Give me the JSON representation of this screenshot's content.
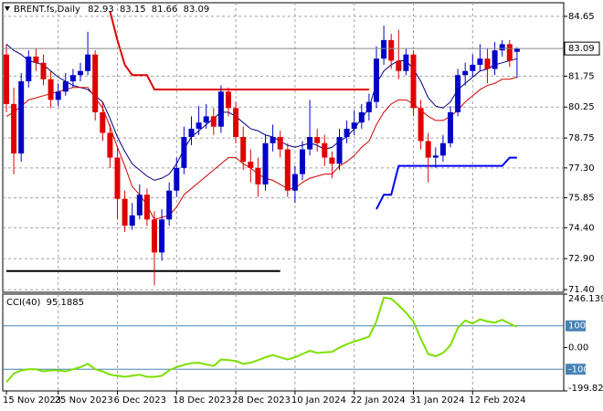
{
  "chart_data": {
    "type": "candlestick",
    "symbol": "BRENT.fs,Daily",
    "bull_color": "#0000c8",
    "bear_color": "#e00000",
    "grid": true,
    "ylim": [
      71.27,
      85.31
    ],
    "yticks": [
      84.65,
      81.75,
      80.25,
      78.75,
      {
        "value": 77.3,
        "label": "77.30"
      },
      75.85,
      {
        "value": 74.4,
        "label": "74.40"
      },
      {
        "value": 72.9,
        "label": "72.90"
      },
      {
        "value": 71.4,
        "label": "71.40"
      }
    ],
    "categories": [
      "15 Nov 2023",
      null,
      null,
      null,
      null,
      null,
      null,
      "25 Nov 2023",
      null,
      null,
      null,
      null,
      null,
      null,
      null,
      "6 Dec 2023",
      null,
      null,
      null,
      null,
      null,
      null,
      null,
      "18 Dec 2023",
      null,
      null,
      null,
      null,
      null,
      null,
      null,
      "28 Dec 2023",
      null,
      null,
      null,
      null,
      null,
      null,
      null,
      "10 Jan 2024",
      null,
      null,
      null,
      null,
      null,
      null,
      null,
      "22 Jan 2024",
      null,
      null,
      null,
      null,
      null,
      null,
      null,
      "31 Jan 2024",
      null,
      null,
      null,
      null,
      null,
      null,
      null,
      "12 Feb 2024",
      null,
      null,
      null,
      null,
      null,
      null
    ],
    "candles": [
      [
        82.8,
        83.3,
        80.0,
        80.4
      ],
      [
        80.4,
        81.2,
        77.0,
        78.0
      ],
      [
        78.0,
        81.9,
        77.6,
        81.5
      ],
      [
        81.5,
        83.0,
        81.2,
        82.7
      ],
      [
        82.7,
        83.1,
        82.0,
        82.4
      ],
      [
        82.4,
        82.8,
        81.3,
        81.6
      ],
      [
        81.6,
        82.0,
        80.2,
        80.6
      ],
      [
        80.6,
        81.4,
        80.3,
        81.0
      ],
      [
        81.0,
        81.9,
        80.8,
        81.5
      ],
      [
        81.5,
        82.1,
        81.2,
        81.8
      ],
      [
        81.8,
        82.4,
        81.5,
        82.0
      ],
      [
        82.0,
        83.9,
        81.8,
        82.8
      ],
      [
        82.8,
        83.0,
        79.6,
        80.0
      ],
      [
        80.0,
        80.5,
        78.6,
        79.0
      ],
      [
        79.0,
        79.4,
        77.3,
        77.8
      ],
      [
        77.8,
        78.3,
        74.8,
        75.8
      ],
      [
        75.8,
        76.2,
        74.2,
        74.5
      ],
      [
        74.5,
        75.6,
        74.3,
        75.0
      ],
      [
        75.0,
        76.5,
        74.8,
        76.0
      ],
      [
        76.0,
        76.3,
        74.5,
        74.8
      ],
      [
        74.8,
        75.2,
        71.6,
        73.2
      ],
      [
        73.2,
        75.3,
        72.8,
        74.8
      ],
      [
        74.8,
        76.6,
        74.5,
        76.2
      ],
      [
        76.2,
        77.8,
        75.9,
        77.3
      ],
      [
        77.3,
        79.3,
        77.0,
        78.8
      ],
      [
        78.8,
        79.8,
        78.4,
        79.2
      ],
      [
        79.2,
        80.3,
        78.9,
        79.5
      ],
      [
        79.5,
        80.4,
        79.2,
        79.8
      ],
      [
        79.8,
        80.2,
        78.9,
        79.3
      ],
      [
        79.3,
        81.3,
        79.0,
        81.0
      ],
      [
        81.0,
        81.2,
        79.8,
        80.2
      ],
      [
        80.2,
        80.5,
        78.5,
        78.8
      ],
      [
        78.8,
        79.3,
        77.2,
        77.6
      ],
      [
        77.6,
        78.2,
        76.6,
        77.3
      ],
      [
        77.3,
        77.8,
        75.9,
        76.5
      ],
      [
        76.5,
        78.9,
        76.2,
        78.5
      ],
      [
        78.5,
        79.4,
        78.1,
        78.8
      ],
      [
        78.8,
        79.1,
        77.8,
        78.2
      ],
      [
        78.2,
        78.5,
        75.9,
        76.2
      ],
      [
        76.2,
        77.4,
        75.6,
        77.0
      ],
      [
        77.0,
        78.6,
        76.7,
        78.2
      ],
      [
        78.2,
        80.6,
        77.9,
        78.8
      ],
      [
        78.8,
        79.2,
        78.1,
        78.5
      ],
      [
        78.5,
        78.9,
        77.4,
        77.8
      ],
      [
        77.8,
        78.1,
        76.8,
        77.5
      ],
      [
        77.5,
        79.2,
        77.2,
        78.8
      ],
      [
        78.8,
        79.6,
        78.5,
        79.2
      ],
      [
        79.2,
        80.1,
        78.9,
        79.5
      ],
      [
        79.5,
        80.4,
        79.2,
        80.0
      ],
      [
        80.0,
        80.9,
        79.6,
        80.5
      ],
      [
        80.5,
        83.2,
        80.2,
        82.6
      ],
      [
        82.6,
        84.2,
        82.3,
        83.5
      ],
      [
        83.5,
        83.8,
        82.1,
        82.5
      ],
      [
        82.5,
        84.0,
        81.6,
        82.0
      ],
      [
        82.0,
        83.1,
        81.8,
        82.8
      ],
      [
        82.8,
        83.0,
        79.8,
        80.2
      ],
      [
        80.2,
        80.6,
        78.2,
        78.6
      ],
      [
        78.6,
        79.0,
        76.6,
        77.8
      ],
      [
        77.8,
        78.3,
        77.3,
        77.9
      ],
      [
        77.9,
        78.9,
        77.6,
        78.5
      ],
      [
        78.5,
        80.3,
        78.3,
        80.0
      ],
      [
        80.0,
        82.1,
        79.8,
        81.8
      ],
      [
        81.8,
        82.4,
        81.3,
        82.0
      ],
      [
        82.0,
        82.8,
        81.7,
        82.3
      ],
      [
        82.3,
        83.3,
        82.0,
        82.6
      ],
      [
        82.6,
        83.1,
        81.4,
        82.1
      ],
      [
        82.1,
        83.4,
        81.8,
        83.0
      ],
      [
        83.0,
        83.5,
        82.7,
        83.3
      ],
      [
        83.3,
        83.5,
        82.2,
        82.5
      ],
      [
        82.93,
        83.15,
        81.66,
        83.09
      ]
    ],
    "overlays": [
      {
        "color": "#000080",
        "width": 1,
        "values": [
          83.3,
          83.0,
          82.8,
          82.5,
          82.4,
          82.3,
          82.0,
          81.7,
          81.5,
          81.3,
          81.2,
          81.1,
          80.8,
          80.5,
          79.7,
          78.8,
          78.1,
          77.5,
          77.2,
          76.9,
          76.7,
          76.8,
          77.0,
          77.5,
          78.2,
          78.8,
          79.1,
          79.4,
          79.7,
          80.0,
          80.0,
          79.8,
          79.5,
          79.2,
          79.1,
          78.9,
          78.8,
          78.6,
          78.4,
          78.3,
          78.4,
          78.5,
          78.4,
          78.2,
          78.3,
          78.6,
          78.8,
          79.2,
          79.7,
          80.2,
          81.4,
          82.0,
          82.3,
          82.5,
          82.5,
          82.1,
          81.5,
          80.7,
          80.3,
          80.2,
          80.5,
          81.1,
          81.4,
          81.7,
          82.0,
          82.1,
          82.3,
          82.4,
          82.5,
          82.6
        ]
      },
      {
        "color": "#d00000",
        "width": 1,
        "values": [
          79.8,
          80.0,
          80.3,
          80.6,
          80.7,
          80.8,
          80.9,
          81.0,
          81.1,
          81.2,
          81.2,
          81.2,
          80.7,
          80.2,
          79.3,
          78.3,
          77.4,
          76.4,
          76.0,
          75.5,
          74.8,
          74.9,
          75.0,
          75.4,
          76.0,
          76.3,
          76.6,
          76.9,
          77.2,
          77.5,
          77.8,
          77.8,
          77.5,
          77.3,
          77.0,
          76.8,
          76.7,
          76.5,
          76.3,
          76.3,
          76.6,
          76.8,
          76.9,
          77.0,
          77.0,
          77.4,
          77.6,
          77.9,
          78.3,
          78.6,
          79.4,
          80.0,
          80.4,
          80.6,
          80.6,
          80.4,
          80.1,
          79.8,
          79.6,
          79.6,
          79.8,
          80.1,
          80.5,
          80.8,
          81.1,
          81.3,
          81.4,
          81.6,
          81.6,
          81.7
        ]
      },
      {
        "color": "#e00000",
        "width": 2,
        "values": [
          null,
          null,
          null,
          null,
          null,
          null,
          null,
          null,
          null,
          null,
          null,
          null,
          null,
          null,
          84.9,
          83.5,
          82.3,
          81.8,
          81.8,
          81.8,
          81.1,
          81.1,
          81.1,
          81.1,
          81.1,
          81.1,
          81.1,
          81.1,
          81.1,
          81.1,
          81.1,
          81.1,
          81.1,
          81.1,
          81.1,
          81.1,
          81.1,
          81.1,
          81.1,
          81.1,
          81.1,
          81.1,
          81.1,
          81.1,
          81.1,
          81.1,
          81.1,
          81.1,
          81.1,
          81.1,
          null,
          null,
          null,
          null,
          null,
          null,
          null,
          null,
          null,
          null,
          null,
          null,
          null,
          null,
          null,
          null,
          null,
          null,
          null,
          null
        ]
      },
      {
        "color": "#0000ff",
        "width": 2,
        "values": [
          null,
          null,
          null,
          null,
          null,
          null,
          null,
          null,
          null,
          null,
          null,
          null,
          null,
          null,
          null,
          null,
          null,
          null,
          null,
          null,
          null,
          null,
          null,
          null,
          null,
          null,
          null,
          null,
          null,
          null,
          null,
          null,
          null,
          null,
          null,
          null,
          null,
          null,
          null,
          null,
          null,
          null,
          null,
          null,
          null,
          null,
          null,
          null,
          null,
          null,
          75.3,
          76.0,
          76.0,
          77.4,
          77.4,
          77.4,
          77.4,
          77.4,
          77.4,
          77.4,
          77.4,
          77.4,
          77.4,
          77.4,
          77.4,
          77.4,
          77.4,
          77.4,
          77.8,
          77.8
        ]
      },
      {
        "color": "#000000",
        "width": 2,
        "values": [
          72.3,
          72.3,
          72.3,
          72.3,
          72.3,
          72.3,
          72.3,
          72.3,
          72.3,
          72.3,
          72.3,
          72.3,
          72.3,
          72.3,
          72.3,
          72.3,
          72.3,
          72.3,
          72.3,
          72.3,
          72.3,
          72.3,
          72.3,
          72.3,
          72.3,
          72.3,
          72.3,
          72.3,
          72.3,
          72.3,
          72.3,
          72.3,
          72.3,
          72.3,
          72.3,
          72.3,
          72.3,
          72.3,
          null,
          null,
          null,
          null,
          null,
          null,
          null,
          null,
          null,
          null,
          null,
          null,
          null,
          null,
          null,
          null,
          null,
          null,
          null,
          null,
          null,
          null,
          null,
          null,
          null,
          null,
          null,
          null,
          null,
          null,
          null,
          null
        ]
      }
    ],
    "cci": {
      "label": "CCI(40)",
      "color": "#7ce000",
      "level_color": "#4682b4",
      "ylim": [
        -199.82,
        246.1394
      ],
      "yticks": [
        246.1394,
        {
          "value": 0,
          "label": "0.00"
        },
        {
          "value": -199.82,
          "label": "-199.820"
        }
      ],
      "levels": [
        100,
        -100
      ],
      "values": [
        -160,
        -120,
        -105,
        -100,
        -100,
        -110,
        -105,
        -105,
        -110,
        -100,
        -90,
        -75,
        -100,
        -110,
        -125,
        -130,
        -135,
        -130,
        -125,
        -135,
        -135,
        -130,
        -105,
        -90,
        -80,
        -72,
        -70,
        -78,
        -85,
        -55,
        -58,
        -62,
        -75,
        -70,
        -58,
        -45,
        -35,
        -45,
        -55,
        -45,
        -30,
        -15,
        -25,
        -22,
        -20,
        0,
        15,
        28,
        38,
        50,
        120,
        230,
        225,
        195,
        160,
        120,
        40,
        -30,
        -40,
        -25,
        10,
        90,
        125,
        110,
        130,
        120,
        115,
        128,
        110,
        95.1885
      ]
    }
  }
}
